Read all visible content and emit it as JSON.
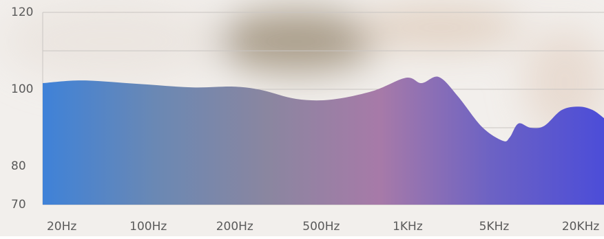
{
  "chart_data": {
    "type": "area",
    "x": [
      -0.22,
      0.24,
      0.88,
      1.51,
      1.99,
      2.31,
      2.71,
      3.11,
      3.59,
      3.98,
      4.16,
      4.36,
      4.58,
      4.86,
      5.1,
      5.18,
      5.28,
      5.42,
      5.58,
      5.78,
      5.98,
      6.14,
      6.27
    ],
    "values": [
      101.6,
      102.3,
      101.4,
      100.5,
      100.7,
      99.8,
      97.5,
      97.3,
      99.5,
      103.0,
      101.6,
      103.2,
      98.2,
      90.2,
      86.6,
      87.5,
      91.1,
      90.0,
      90.5,
      94.6,
      95.5,
      94.6,
      92.5
    ],
    "colors": [
      "#3f82d8",
      "#6a88b4",
      "#8a86a0",
      "#a77aa8",
      "#6c62c4",
      "#4c4dd8"
    ],
    "xlim": [
      -0.22,
      6.27
    ],
    "xticks": [
      {
        "value": 0,
        "label": "20Hz"
      },
      {
        "value": 1,
        "label": "100Hz"
      },
      {
        "value": 2,
        "label": "200Hz"
      },
      {
        "value": 3,
        "label": "500Hz"
      },
      {
        "value": 4,
        "label": "1KHz"
      },
      {
        "value": 5,
        "label": "5KHz"
      },
      {
        "value": 6,
        "label": "20KHz"
      }
    ],
    "ylim": [
      70,
      120
    ],
    "yticks": [
      70,
      80,
      100,
      120
    ],
    "ygrid": [
      70,
      80,
      90,
      100,
      110,
      120
    ]
  }
}
